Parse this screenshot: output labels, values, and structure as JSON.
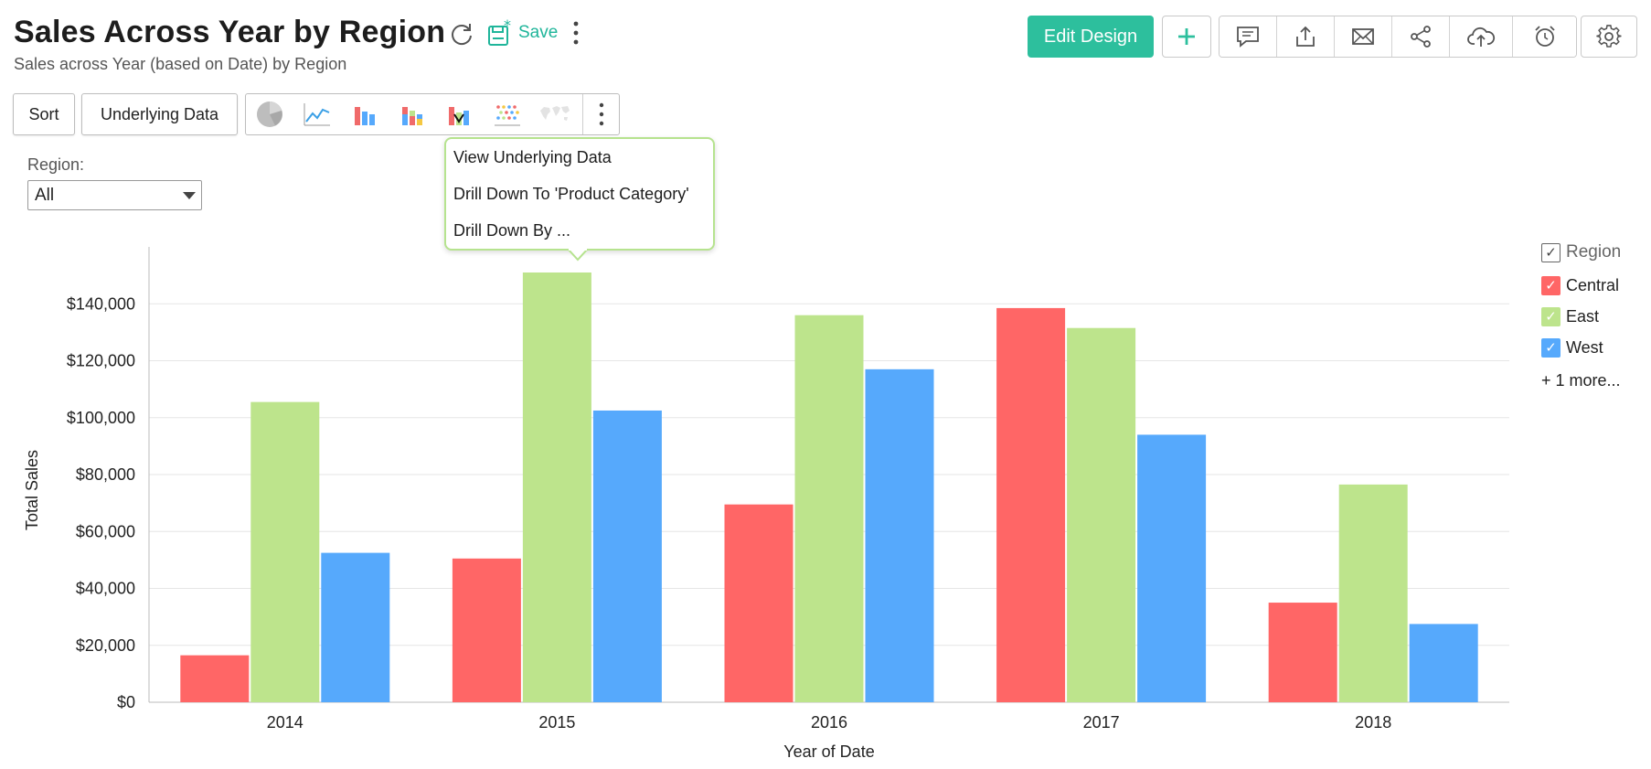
{
  "header": {
    "title": "Sales Across Year by Region",
    "subtitle": "Sales across Year (based on Date) by Region",
    "save_label": "Save"
  },
  "actions": {
    "edit_design_label": "Edit Design"
  },
  "toolbar": {
    "sort_label": "Sort",
    "underlying_label": "Underlying Data",
    "chart_types": [
      "pie-chart-icon",
      "line-chart-icon",
      "bar-chart-icon",
      "stacked-bar-icon",
      "bar-line-combo-icon",
      "scatter-icon",
      "map-icon"
    ]
  },
  "context_menu": {
    "items": [
      "View Underlying Data",
      "Drill Down To 'Product Category'",
      "Drill Down By ..."
    ]
  },
  "filter": {
    "label": "Region:",
    "value": "All"
  },
  "legend": {
    "title": "Region",
    "items": [
      {
        "name": "Central",
        "color": "#ff6666"
      },
      {
        "name": "East",
        "color": "#bde48c"
      },
      {
        "name": "West",
        "color": "#56a9fc"
      }
    ],
    "more": "+ 1 more..."
  },
  "chart_data": {
    "type": "bar",
    "categories": [
      "2014",
      "2015",
      "2016",
      "2017",
      "2018"
    ],
    "series": [
      {
        "name": "Central",
        "color": "#ff6666",
        "values": [
          16500,
          50500,
          69500,
          138500,
          35000
        ]
      },
      {
        "name": "East",
        "color": "#bde48c",
        "values": [
          105500,
          151000,
          136000,
          131500,
          76500
        ]
      },
      {
        "name": "West",
        "color": "#56a9fc",
        "values": [
          52500,
          102500,
          117000,
          94000,
          27500
        ]
      }
    ],
    "title": "",
    "xlabel": "Year of Date",
    "ylabel": "Total Sales",
    "ylim": [
      0,
      160000
    ],
    "yticks": [
      0,
      20000,
      40000,
      60000,
      80000,
      100000,
      120000,
      140000
    ],
    "ytick_labels": [
      "$0",
      "$20,000",
      "$40,000",
      "$60,000",
      "$80,000",
      "$100,000",
      "$120,000",
      "$140,000"
    ],
    "grid": true,
    "legend_position": "right"
  }
}
